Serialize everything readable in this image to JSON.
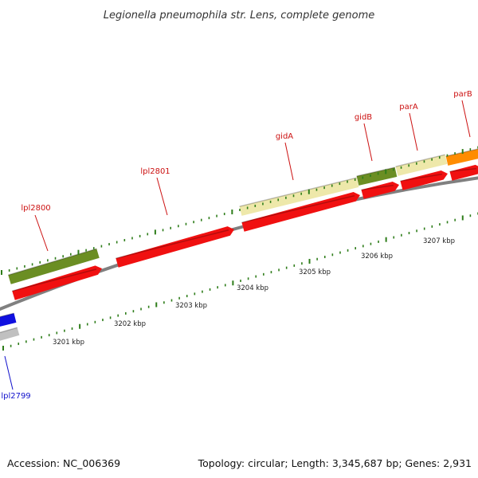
{
  "title": "Legionella pneumophila str. Lens, complete genome",
  "footer": {
    "accession": "Accession: NC_006369",
    "topology": "Topology: circular; Length: 3,345,687 bp; Genes: 2,931"
  },
  "colors": {
    "forward_cds": "#f01010",
    "reverse_cds": "#1010e0",
    "backbone": "#808080",
    "label_forward": "#cc1111",
    "label_reverse": "#1010cc",
    "tick": "#2e7d1a",
    "cog_green": "#6b8e23",
    "cog_khaki": "#eee8aa",
    "cog_orange": "#ff8c00",
    "cog_gray": "#c0c0c0",
    "cog_blue": "#1010e0"
  },
  "scale_labels": [
    "3201 kbp",
    "3202 kbp",
    "3203 kbp",
    "3204 kbp",
    "3205 kbp",
    "3206 kbp",
    "3207 kbp"
  ],
  "genes": [
    {
      "label": "lpl2799",
      "strand": "reverse",
      "cog_color": "cog_gray"
    },
    {
      "label": "lpl2800",
      "strand": "forward",
      "cog_color": "cog_green"
    },
    {
      "label": "lpl2801",
      "strand": "forward",
      "cog_color": ""
    },
    {
      "label": "gidA",
      "strand": "forward",
      "cog_color": "cog_khaki"
    },
    {
      "label": "gidB",
      "strand": "forward",
      "cog_color": "cog_green"
    },
    {
      "label": "parA",
      "strand": "forward",
      "cog_color": "cog_khaki"
    },
    {
      "label": "parB",
      "strand": "forward",
      "cog_color": "cog_orange"
    }
  ]
}
